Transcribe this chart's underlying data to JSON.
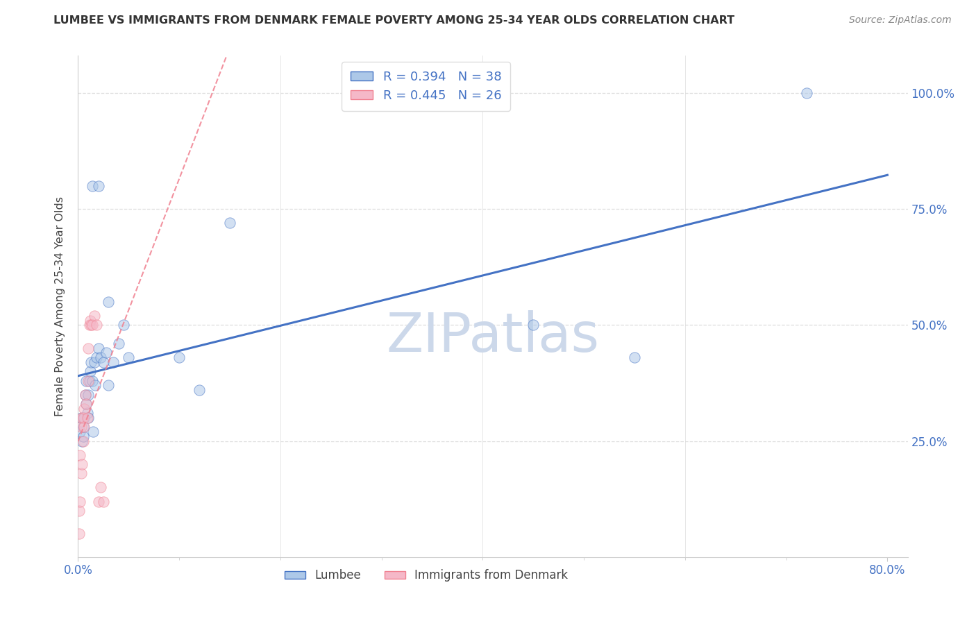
{
  "title": "LUMBEE VS IMMIGRANTS FROM DENMARK FEMALE POVERTY AMONG 25-34 YEAR OLDS CORRELATION CHART",
  "source": "Source: ZipAtlas.com",
  "ylabel": "Female Poverty Among 25-34 Year Olds",
  "xlim": [
    0.0,
    0.82
  ],
  "ylim": [
    0.0,
    1.08
  ],
  "lumbee_color": "#adc8e8",
  "denmark_color": "#f5b8c8",
  "line_lumbee_color": "#4472c4",
  "line_denmark_color": "#f08090",
  "lumbee_R": 0.394,
  "lumbee_N": 38,
  "denmark_R": 0.445,
  "denmark_N": 26,
  "lumbee_x": [
    0.002,
    0.003,
    0.004,
    0.005,
    0.005,
    0.006,
    0.007,
    0.008,
    0.008,
    0.009,
    0.01,
    0.01,
    0.011,
    0.012,
    0.013,
    0.014,
    0.015,
    0.016,
    0.017,
    0.018,
    0.02,
    0.022,
    0.025,
    0.028,
    0.03,
    0.035,
    0.04,
    0.045,
    0.05,
    0.1,
    0.12,
    0.15,
    0.45,
    0.55,
    0.72,
    0.014,
    0.02,
    0.03
  ],
  "lumbee_y": [
    0.27,
    0.3,
    0.25,
    0.26,
    0.28,
    0.3,
    0.35,
    0.33,
    0.38,
    0.31,
    0.3,
    0.35,
    0.38,
    0.4,
    0.42,
    0.38,
    0.27,
    0.42,
    0.37,
    0.43,
    0.45,
    0.43,
    0.42,
    0.44,
    0.37,
    0.42,
    0.46,
    0.5,
    0.43,
    0.43,
    0.36,
    0.72,
    0.5,
    0.43,
    1.0,
    0.8,
    0.8,
    0.55
  ],
  "denmark_x": [
    0.001,
    0.001,
    0.002,
    0.002,
    0.003,
    0.003,
    0.004,
    0.004,
    0.005,
    0.005,
    0.006,
    0.006,
    0.007,
    0.008,
    0.009,
    0.01,
    0.01,
    0.011,
    0.012,
    0.013,
    0.014,
    0.016,
    0.018,
    0.02,
    0.022,
    0.025
  ],
  "denmark_y": [
    0.05,
    0.1,
    0.12,
    0.22,
    0.18,
    0.28,
    0.2,
    0.3,
    0.25,
    0.3,
    0.28,
    0.32,
    0.35,
    0.33,
    0.3,
    0.38,
    0.45,
    0.5,
    0.51,
    0.5,
    0.5,
    0.52,
    0.5,
    0.12,
    0.15,
    0.12
  ],
  "watermark_text": "ZIPatlas",
  "watermark_color": "#ccd8ea",
  "grid_color": "#dddddd",
  "background_color": "#ffffff",
  "marker_size": 11,
  "marker_alpha": 0.55,
  "legend_lumbee": "Lumbee",
  "legend_denmark": "Immigrants from Denmark"
}
